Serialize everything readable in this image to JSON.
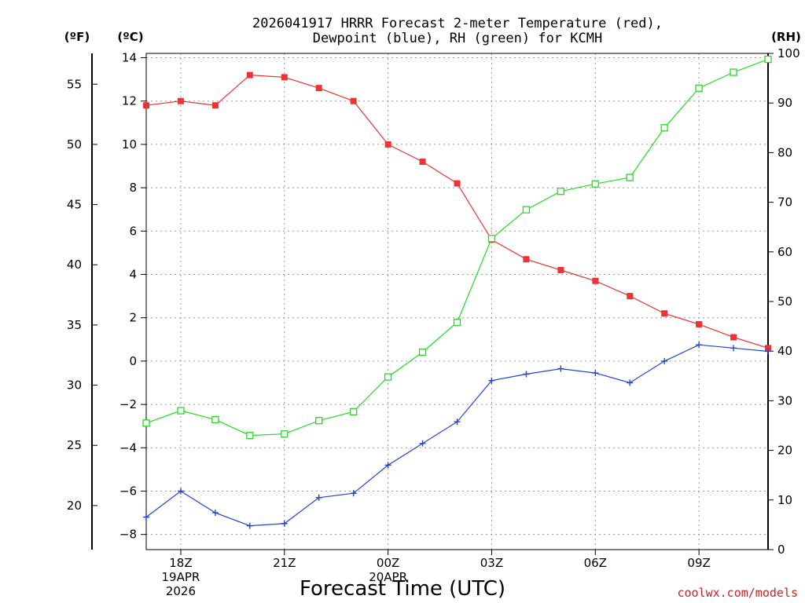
{
  "chart_data": {
    "type": "line",
    "title_line1": "2026041917 HRRR Forecast 2-meter Temperature (red),",
    "title_line2": "Dewpoint (blue), RH (green) for KCMH",
    "xlabel": "Forecast Time (UTC)",
    "credit": "coolwx.com/models",
    "units": {
      "fahrenheit": "(ºF)",
      "celsius": "(ºC)",
      "rh": "(RH)"
    },
    "x_hours": [
      17,
      18,
      19,
      20,
      21,
      22,
      23,
      24,
      25,
      26,
      27,
      28,
      29,
      30,
      31,
      32,
      33,
      34,
      35
    ],
    "x_ticks": [
      {
        "hour": 18,
        "lines": [
          "18Z",
          "19APR",
          "2026"
        ]
      },
      {
        "hour": 21,
        "lines": [
          "21Z"
        ]
      },
      {
        "hour": 24,
        "lines": [
          "00Z",
          "20APR"
        ]
      },
      {
        "hour": 27,
        "lines": [
          "03Z"
        ]
      },
      {
        "hour": 30,
        "lines": [
          "06Z"
        ]
      },
      {
        "hour": 33,
        "lines": [
          "09Z"
        ]
      }
    ],
    "ylim_celsius": [
      -8.7,
      14.2
    ],
    "ylim_rh": [
      0,
      100
    ],
    "celsius_ticks": [
      14,
      12,
      10,
      8,
      6,
      4,
      2,
      0,
      -2,
      -4,
      -6,
      -8
    ],
    "celsius_tick_labels": [
      "14",
      "12",
      "10",
      "8",
      "6",
      "4",
      "2",
      "0",
      "−2",
      "−4",
      "−6",
      "−8"
    ],
    "fahrenheit_ticks": [
      "55",
      "50",
      "45",
      "40",
      "35",
      "30",
      "25",
      "20"
    ],
    "rh_ticks": [
      "100",
      "90",
      "80",
      "70",
      "60",
      "50",
      "40",
      "30",
      "20",
      "10",
      "0"
    ],
    "series": [
      {
        "name": "Temperature",
        "unit": "C",
        "color": "#ee3333",
        "marker": "filled-square",
        "values": [
          11.8,
          12.0,
          11.8,
          13.2,
          13.1,
          12.6,
          12.0,
          10.0,
          9.2,
          8.2,
          5.6,
          4.7,
          4.2,
          3.7,
          3.0,
          2.2,
          1.7,
          1.1,
          0.6
        ]
      },
      {
        "name": "Dewpoint",
        "unit": "C",
        "color": "#2244dd",
        "marker": "plus",
        "values": [
          -7.2,
          -6.0,
          -7.0,
          -7.6,
          -7.5,
          -6.3,
          -6.1,
          -4.8,
          -3.8,
          -2.8,
          -0.9,
          -0.6,
          -0.35,
          -0.55,
          -1.0,
          0.0,
          0.75,
          0.6,
          0.45
        ]
      },
      {
        "name": "RH",
        "unit": "%",
        "color": "#22dd22",
        "marker": "open-square",
        "values": [
          25.5,
          28.0,
          26.2,
          23.0,
          23.3,
          26.0,
          27.8,
          34.8,
          39.8,
          45.8,
          62.7,
          68.5,
          72.2,
          73.7,
          75.0,
          85.0,
          93.0,
          96.2,
          98.8
        ]
      }
    ]
  }
}
